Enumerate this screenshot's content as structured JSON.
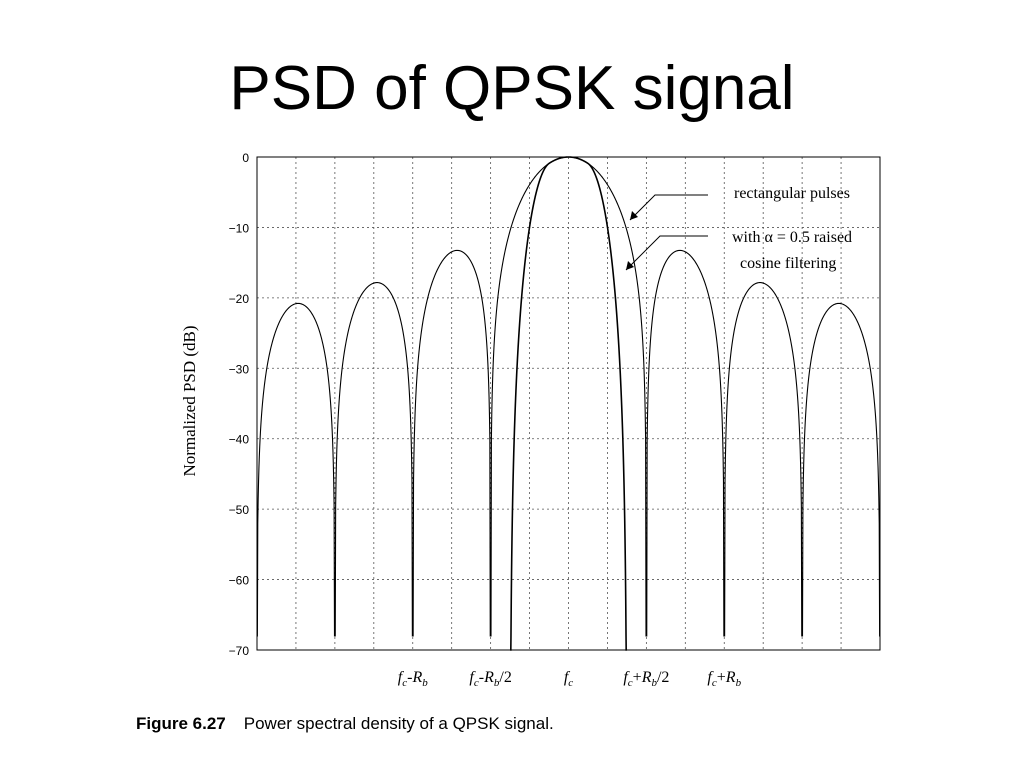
{
  "slide": {
    "title": "PSD of QPSK signal"
  },
  "caption": {
    "figure_label": "Figure 6.27",
    "text": "Power spectral density of a QPSK signal."
  },
  "chart_data": {
    "type": "line",
    "title": "",
    "ylabel": "Normalized PSD (dB)",
    "xlabel": "",
    "ylim": [
      -70,
      0
    ],
    "xlim": [
      -2.0,
      2.0
    ],
    "x_unit": "R_b offset from f_c",
    "grid": true,
    "yticks": [
      0,
      -10,
      -20,
      -30,
      -40,
      -50,
      -60,
      -70
    ],
    "xticks": [
      {
        "x": -1.0,
        "label": "fc-Rb"
      },
      {
        "x": -0.5,
        "label": "fc-Rb/2"
      },
      {
        "x": 0.0,
        "label": "fc"
      },
      {
        "x": 0.5,
        "label": "fc+Rb/2"
      },
      {
        "x": 1.0,
        "label": "fc+Rb"
      }
    ],
    "series": [
      {
        "name": "rectangular pulses",
        "model": "sinc^2 with nulls at multiples of Rb/2",
        "nulls": [
          -2.0,
          -1.5,
          -1.0,
          -0.5,
          0.5,
          1.0,
          1.5,
          2.0
        ],
        "lobe_peaks": [
          {
            "x": -1.75,
            "y": -21
          },
          {
            "x": -1.25,
            "y": -18
          },
          {
            "x": -0.75,
            "y": -14
          },
          {
            "x": 0.0,
            "y": 0
          },
          {
            "x": 0.75,
            "y": -14
          },
          {
            "x": 1.25,
            "y": -18.5
          },
          {
            "x": 1.75,
            "y": -21.5
          }
        ]
      },
      {
        "name": "with α = 0.5 raised cosine filtering",
        "model": "raised-cosine spectrum, flat top to 0.125 Rb, zero beyond 0.375 Rb"
      }
    ],
    "annotations": [
      {
        "text": "rectangular pulses",
        "points_to": "rectangular pulses"
      },
      {
        "text": "with α = 0.5 raised",
        "line2": "cosine filtering",
        "points_to": "with α = 0.5 raised cosine filtering"
      }
    ]
  }
}
